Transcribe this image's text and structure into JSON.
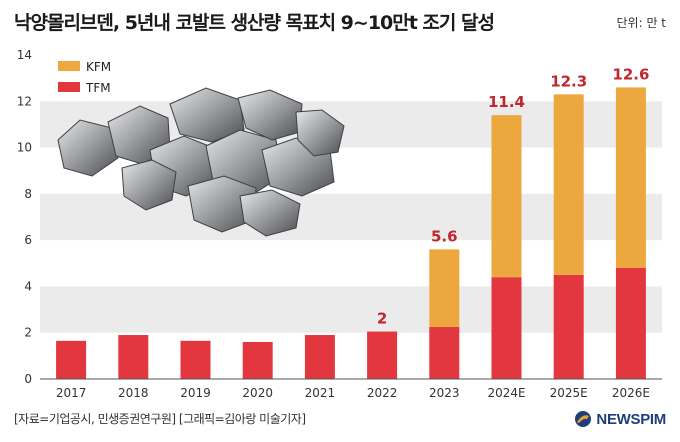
{
  "title": "낙양몰리브덴, 5년내 코발트 생산량 목표치 9~10만t 조기 달성",
  "unit_label": "단위: 만 t",
  "source": "[자료=기업공시, 민생증권연구원] [그래픽=김아랑 미술기자]",
  "logo": {
    "text": "NEWSPIM",
    "icon": "newspim-logo-icon"
  },
  "photo": {
    "icon": "metal-ore-chunks-icon"
  },
  "chart_data": {
    "type": "bar",
    "stacked": true,
    "categories": [
      "2017",
      "2018",
      "2019",
      "2020",
      "2021",
      "2022",
      "2023",
      "2024E",
      "2025E",
      "2026E"
    ],
    "series": [
      {
        "name": "TFM",
        "color": "#e2373f",
        "values": [
          1.65,
          1.9,
          1.65,
          1.6,
          1.9,
          2.05,
          2.25,
          4.4,
          4.5,
          4.8
        ]
      },
      {
        "name": "KFM",
        "color": "#eca73e",
        "values": [
          0,
          0,
          0,
          0,
          0,
          0,
          3.35,
          7.0,
          7.8,
          7.8
        ]
      }
    ],
    "total_labels": [
      "",
      "",
      "",
      "",
      "",
      "2",
      "5.6",
      "11.4",
      "12.3",
      "12.6"
    ],
    "total_label_color": "#c0262e",
    "ylim": [
      0,
      14
    ],
    "yticks": [
      0,
      2,
      4,
      6,
      8,
      10,
      12,
      14
    ],
    "legend": {
      "position": "top-left",
      "order": [
        "KFM",
        "TFM"
      ]
    },
    "band_color": "#ebebeb"
  }
}
